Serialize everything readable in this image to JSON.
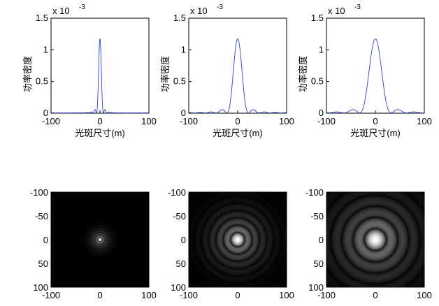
{
  "chart_data": [
    {
      "type": "line",
      "xlabel": "光斑尺寸(m)",
      "ylabel": "功率密度",
      "exponent_base": "x 10",
      "exponent_power": "-3",
      "xlim": [
        -100,
        100
      ],
      "ylim": [
        0,
        1.5
      ],
      "xticks": [
        "-100",
        "0",
        "100"
      ],
      "yticks": [
        "0",
        "0.5",
        "1",
        "1.5"
      ],
      "color": "#2f3fd0",
      "peak": 1.17,
      "central_lobe_halfwidth": 7,
      "sidelobe_envelope_width": 30
    },
    {
      "type": "line",
      "xlabel": "光斑尺寸(m)",
      "ylabel": "功率密度",
      "exponent_base": "x 10",
      "exponent_power": "-3",
      "xlim": [
        -100,
        100
      ],
      "ylim": [
        0,
        1.5
      ],
      "xticks": [
        "-100",
        "0",
        "100"
      ],
      "yticks": [
        "0",
        "0.5",
        "1",
        "1.5"
      ],
      "color": "#2f3fd0",
      "peak": 1.17,
      "central_lobe_halfwidth": 22,
      "sidelobe_envelope_width": 95
    },
    {
      "type": "line",
      "xlabel": "光斑尺寸(m)",
      "ylabel": "功率密度",
      "exponent_base": "x 10",
      "exponent_power": "-3",
      "xlim": [
        -100,
        100
      ],
      "ylim": [
        0,
        1.5
      ],
      "xticks": [
        "-100",
        "0",
        "100"
      ],
      "yticks": [
        "0",
        "0.5",
        "1",
        "1.5"
      ],
      "color": "#2f3fd0",
      "peak": 1.17,
      "central_lobe_halfwidth": 32,
      "sidelobe_envelope_width": 140
    },
    {
      "type": "heatmap",
      "xlim": [
        -100,
        100
      ],
      "ylim": [
        -100,
        100
      ],
      "xticks": [
        "-100",
        "0",
        "100"
      ],
      "yticks": [
        "-100",
        "-50",
        "0",
        "50",
        "100"
      ],
      "ring_scale": 5
    },
    {
      "type": "heatmap",
      "xlim": [
        -100,
        100
      ],
      "ylim": [
        -100,
        100
      ],
      "xticks": [
        "-100",
        "0",
        "100"
      ],
      "yticks": [
        "-100",
        "-50",
        "0",
        "50",
        "100"
      ],
      "ring_scale": 15
    },
    {
      "type": "heatmap",
      "xlim": [
        -100,
        100
      ],
      "ylim": [
        -100,
        100
      ],
      "xticks": [
        "-100",
        "0",
        "100"
      ],
      "yticks": [
        "-100",
        "-50",
        "0",
        "50",
        "100"
      ],
      "ring_scale": 23
    }
  ]
}
